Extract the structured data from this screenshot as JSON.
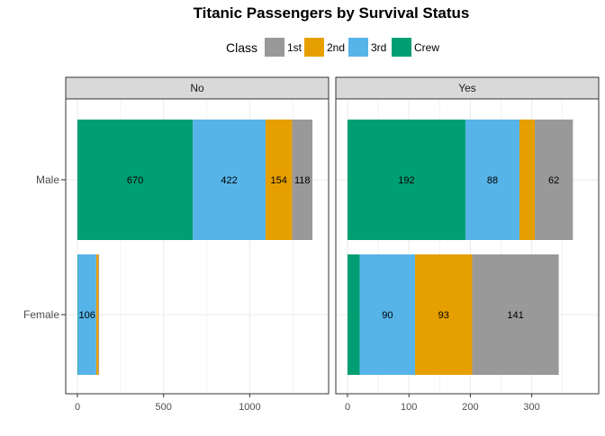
{
  "chart_data": {
    "type": "bar",
    "orientation": "horizontal",
    "stacked": true,
    "title": "Titanic Passengers by Survival Status",
    "legend": {
      "title": "Class",
      "placement": "top",
      "entries": [
        {
          "name": "1st",
          "color": "#999999"
        },
        {
          "name": "2nd",
          "color": "#E69F00"
        },
        {
          "name": "3rd",
          "color": "#56B4E9"
        },
        {
          "name": "Crew",
          "color": "#009E73"
        }
      ]
    },
    "stack_order": [
      "Crew",
      "3rd",
      "2nd",
      "1st"
    ],
    "categories": [
      "Male",
      "Female"
    ],
    "grid": true,
    "panels": [
      {
        "label": "No",
        "xlim": [
          0,
          1390
        ],
        "xticks": [
          0,
          500,
          1000
        ],
        "series": [
          {
            "name": "Crew",
            "values": [
              670,
              3
            ]
          },
          {
            "name": "3rd",
            "values": [
              422,
              106
            ]
          },
          {
            "name": "2nd",
            "values": [
              154,
              13
            ]
          },
          {
            "name": "1st",
            "values": [
              118,
              4
            ]
          }
        ],
        "shown_labels": [
          {
            "series": "Crew",
            "category": "Male",
            "text": "670"
          },
          {
            "series": "3rd",
            "category": "Male",
            "text": "422"
          },
          {
            "series": "2nd",
            "category": "Male",
            "text": "154"
          },
          {
            "series": "1st",
            "category": "Male",
            "text": "118"
          },
          {
            "series": "3rd",
            "category": "Female",
            "text": "106"
          }
        ]
      },
      {
        "label": "Yes",
        "xlim": [
          0,
          390
        ],
        "xticks": [
          0,
          100,
          200,
          300
        ],
        "series": [
          {
            "name": "Crew",
            "values": [
              192,
              20
            ]
          },
          {
            "name": "3rd",
            "values": [
              88,
              90
            ]
          },
          {
            "name": "2nd",
            "values": [
              25,
              93
            ]
          },
          {
            "name": "1st",
            "values": [
              62,
              141
            ]
          }
        ],
        "shown_labels": [
          {
            "series": "Crew",
            "category": "Male",
            "text": "192"
          },
          {
            "series": "3rd",
            "category": "Male",
            "text": "88"
          },
          {
            "series": "1st",
            "category": "Male",
            "text": "62"
          },
          {
            "series": "3rd",
            "category": "Female",
            "text": "90"
          },
          {
            "series": "2nd",
            "category": "Female",
            "text": "93"
          },
          {
            "series": "1st",
            "category": "Female",
            "text": "141"
          }
        ]
      }
    ]
  }
}
